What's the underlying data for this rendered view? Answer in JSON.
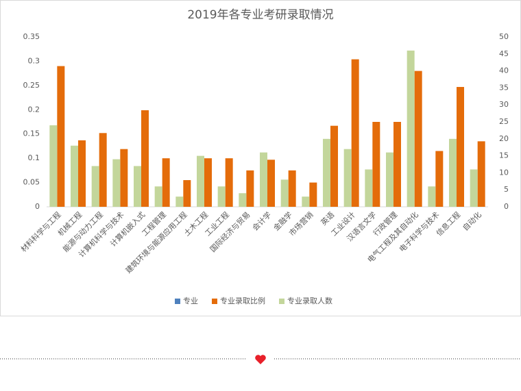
{
  "chart_data": {
    "type": "bar",
    "title": "2019年各专业考研录取情况",
    "categories": [
      "材料科学与工程",
      "机械工程",
      "能源与动力工程",
      "计算机科学与技术",
      "计算机嵌入式",
      "工程管理",
      "建筑环境与能源应用工程",
      "土木工程",
      "工业工程",
      "国际经济与贸易",
      "会计学",
      "金融学",
      "市场营销",
      "英语",
      "工业设计",
      "汉语言文学",
      "行政管理",
      "电气工程及其自动化",
      "电子科学与技术",
      "信息工程",
      "自动化"
    ],
    "series": [
      {
        "name": "专业",
        "color": "#4f81bd",
        "values": [
          null,
          null,
          null,
          null,
          null,
          null,
          null,
          null,
          null,
          null,
          null,
          null,
          null,
          null,
          null,
          null,
          null,
          null,
          null,
          null,
          null
        ]
      },
      {
        "name": "专业录取比例",
        "color": "#e46c0a",
        "values": [
          0.29,
          0.137,
          0.152,
          0.119,
          0.199,
          0.1,
          0.055,
          0.1,
          0.1,
          0.075,
          0.097,
          0.075,
          0.05,
          0.167,
          0.304,
          0.175,
          0.175,
          0.28,
          0.115,
          0.247,
          0.135
        ]
      },
      {
        "name": "专业录取人数",
        "color": "#c3d69b",
        "axis": "y2",
        "values": [
          24,
          18,
          12,
          14,
          12,
          6,
          3,
          15,
          6,
          4,
          16,
          8,
          3,
          20,
          17,
          11,
          16,
          46,
          6,
          20,
          11
        ]
      }
    ],
    "ylim": [
      0,
      0.35
    ],
    "yticks": [
      0,
      0.05,
      0.1,
      0.15,
      0.2,
      0.25,
      0.3,
      0.35
    ],
    "y2lim": [
      0,
      50
    ],
    "y2ticks": [
      0,
      5,
      10,
      15,
      20,
      25,
      30,
      35,
      40,
      45,
      50
    ],
    "grid": false,
    "legend": "bottom"
  }
}
